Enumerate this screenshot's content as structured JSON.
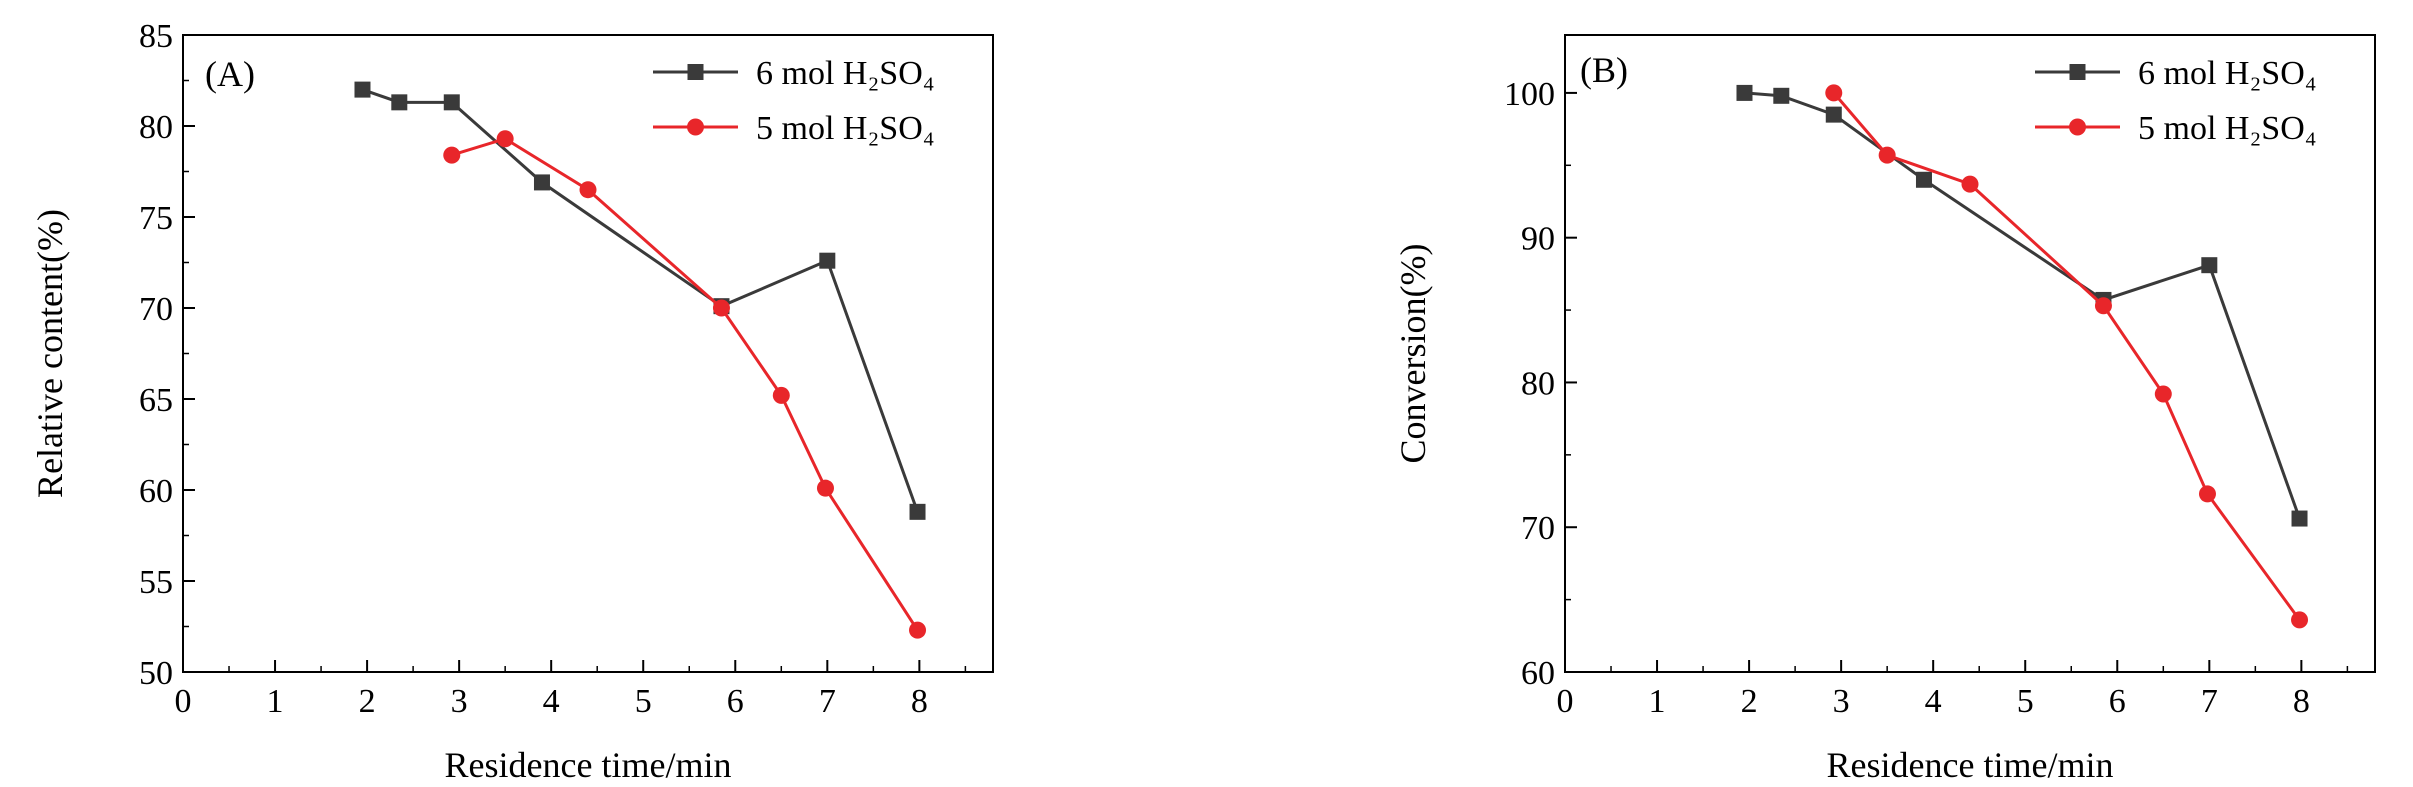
{
  "chart_data": [
    {
      "type": "line",
      "panel_label": "(A)",
      "xlabel": "Residence time/min",
      "ylabel": "Relative content(%)",
      "xlim": [
        0,
        8.8
      ],
      "ylim": [
        50,
        85
      ],
      "xticks": [
        0,
        1,
        2,
        3,
        4,
        5,
        6,
        7,
        8
      ],
      "yticks": [
        50,
        55,
        60,
        65,
        70,
        75,
        80,
        85
      ],
      "grid": false,
      "legend_position": "top-right",
      "series": [
        {
          "name": "6 mol H₂SO₄",
          "color": "#3a3a3a",
          "marker": "square",
          "x": [
            1.95,
            2.35,
            2.92,
            3.9,
            5.85,
            7.0,
            7.98
          ],
          "y": [
            82.0,
            81.3,
            81.3,
            76.9,
            70.1,
            72.6,
            58.8
          ]
        },
        {
          "name": "5 mol H₂SO₄",
          "color": "#e8262a",
          "marker": "circle",
          "x": [
            2.92,
            3.5,
            4.4,
            5.85,
            6.5,
            6.98,
            7.98
          ],
          "y": [
            78.4,
            79.3,
            76.5,
            70.0,
            65.2,
            60.1,
            52.3
          ]
        }
      ]
    },
    {
      "type": "line",
      "panel_label": "(B)",
      "xlabel": "Residence time/min",
      "ylabel": "Conversion(%)",
      "xlim": [
        0,
        8.8
      ],
      "ylim": [
        60,
        104
      ],
      "xticks": [
        0,
        1,
        2,
        3,
        4,
        5,
        6,
        7,
        8
      ],
      "yticks": [
        60,
        70,
        80,
        90,
        100
      ],
      "grid": false,
      "legend_position": "top-right",
      "series": [
        {
          "name": "6 mol H₂SO₄",
          "color": "#3a3a3a",
          "marker": "square",
          "x": [
            1.95,
            2.35,
            2.92,
            3.9,
            5.85,
            7.0,
            7.98
          ],
          "y": [
            100.0,
            99.8,
            98.5,
            94.0,
            85.7,
            88.1,
            70.6
          ]
        },
        {
          "name": "5 mol H₂SO₄",
          "color": "#e8262a",
          "marker": "circle",
          "x": [
            2.92,
            3.5,
            4.4,
            5.85,
            6.5,
            6.98,
            7.98
          ],
          "y": [
            100.0,
            95.7,
            93.7,
            85.3,
            79.2,
            72.3,
            63.6
          ]
        }
      ]
    }
  ]
}
